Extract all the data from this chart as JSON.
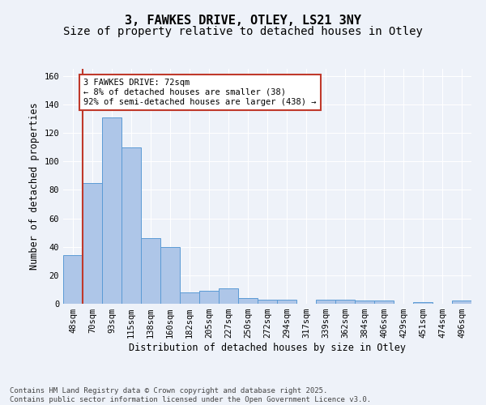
{
  "title1": "3, FAWKES DRIVE, OTLEY, LS21 3NY",
  "title2": "Size of property relative to detached houses in Otley",
  "xlabel": "Distribution of detached houses by size in Otley",
  "ylabel": "Number of detached properties",
  "categories": [
    "48sqm",
    "70sqm",
    "93sqm",
    "115sqm",
    "138sqm",
    "160sqm",
    "182sqm",
    "205sqm",
    "227sqm",
    "250sqm",
    "272sqm",
    "294sqm",
    "317sqm",
    "339sqm",
    "362sqm",
    "384sqm",
    "406sqm",
    "429sqm",
    "451sqm",
    "474sqm",
    "496sqm"
  ],
  "values": [
    34,
    85,
    131,
    110,
    46,
    40,
    8,
    9,
    11,
    4,
    3,
    3,
    0,
    3,
    3,
    2,
    2,
    0,
    1,
    0,
    2
  ],
  "bar_color": "#aec6e8",
  "bar_edge_color": "#5b9bd5",
  "annotation_text": "3 FAWKES DRIVE: 72sqm\n← 8% of detached houses are smaller (38)\n92% of semi-detached houses are larger (438) →",
  "annotation_box_color": "#ffffff",
  "annotation_box_edge_color": "#c0392b",
  "highlight_line_color": "#c0392b",
  "ylim": [
    0,
    165
  ],
  "yticks": [
    0,
    20,
    40,
    60,
    80,
    100,
    120,
    140,
    160
  ],
  "footer": "Contains HM Land Registry data © Crown copyright and database right 2025.\nContains public sector information licensed under the Open Government Licence v3.0.",
  "background_color": "#eef2f9",
  "grid_color": "#ffffff",
  "title_fontsize": 11,
  "subtitle_fontsize": 10,
  "axis_label_fontsize": 8.5,
  "tick_fontsize": 7.5,
  "annotation_fontsize": 7.5,
  "footer_fontsize": 6.5
}
